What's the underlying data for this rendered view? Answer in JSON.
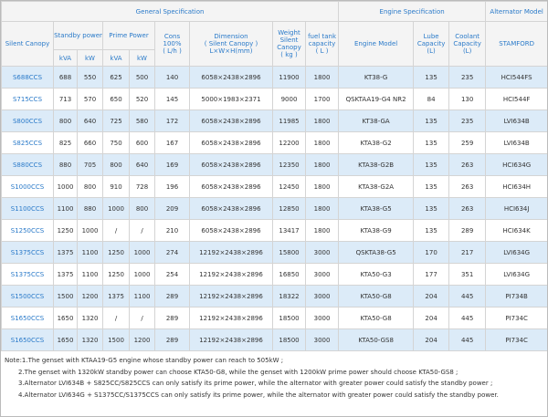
{
  "header": {
    "groups": [
      "General Specification",
      "Engine Specification",
      "Alternator Model"
    ],
    "columns": [
      [
        "Silent Canopy"
      ],
      [
        "Standby power"
      ],
      [
        "Prime Power"
      ],
      [
        "Cons",
        "100%",
        "( L/h )"
      ],
      [
        "Dimension",
        "( Silent Canopy )",
        "L×W×H(mm)"
      ],
      [
        "Weight",
        "Silent",
        "Canopy",
        "( kg )"
      ],
      [
        "fuel tank",
        "capacity",
        "( L )"
      ],
      [
        "Engine Model"
      ],
      [
        "Lube",
        "Capacity",
        "(L)"
      ],
      [
        "Coolant",
        "Capacity",
        "(L)"
      ],
      [
        "STAMFORD"
      ]
    ],
    "units": [
      "kVA",
      "kW",
      "kVA",
      "kW"
    ]
  },
  "rows": [
    [
      "S688CCS",
      "688",
      "550",
      "625",
      "500",
      "140",
      "6058×2438×2896",
      "11900",
      "1800",
      "KT38-G",
      "135",
      "235",
      "HCI544FS"
    ],
    [
      "S715CCS",
      "713",
      "570",
      "650",
      "520",
      "145",
      "5000×1983×2371",
      "9000",
      "1700",
      "QSKTAA19-G4 NR2",
      "84",
      "130",
      "HCI544F"
    ],
    [
      "S800CCS",
      "800",
      "640",
      "725",
      "580",
      "172",
      "6058×2438×2896",
      "11985",
      "1800",
      "KT38-GA",
      "135",
      "235",
      "LVI634B"
    ],
    [
      "S825CCS",
      "825",
      "660",
      "750",
      "600",
      "167",
      "6058×2438×2896",
      "12200",
      "1800",
      "KTA38-G2",
      "135",
      "259",
      "LVI634B"
    ],
    [
      "S880CCS",
      "880",
      "705",
      "800",
      "640",
      "169",
      "6058×2438×2896",
      "12350",
      "1800",
      "KTA38-G2B",
      "135",
      "263",
      "HCI634G"
    ],
    [
      "S1000CCS",
      "1000",
      "800",
      "910",
      "728",
      "196",
      "6058×2438×2896",
      "12450",
      "1800",
      "KTA38-G2A",
      "135",
      "263",
      "HCI634H"
    ],
    [
      "S1100CCS",
      "1100",
      "880",
      "1000",
      "800",
      "209",
      "6058×2438×2896",
      "12850",
      "1800",
      "KTA38-G5",
      "135",
      "263",
      "HCI634J"
    ],
    [
      "S1250CCS",
      "1250",
      "1000",
      "/",
      "/",
      "210",
      "6058×2438×2896",
      "13417",
      "1800",
      "KTA38-G9",
      "135",
      "289",
      "HCI634K"
    ],
    [
      "S1375CCS",
      "1375",
      "1100",
      "1250",
      "1000",
      "274",
      "12192×2438×2896",
      "15800",
      "3000",
      "QSKTA38-G5",
      "170",
      "217",
      "LVI634G"
    ],
    [
      "S1375CCS",
      "1375",
      "1100",
      "1250",
      "1000",
      "254",
      "12192×2438×2896",
      "16850",
      "3000",
      "KTA50-G3",
      "177",
      "351",
      "LVI634G"
    ],
    [
      "S1500CCS",
      "1500",
      "1200",
      "1375",
      "1100",
      "289",
      "12192×2438×2896",
      "18322",
      "3000",
      "KTA50-G8",
      "204",
      "445",
      "PI734B"
    ],
    [
      "S1650CCS",
      "1650",
      "1320",
      "/",
      "/",
      "289",
      "12192×2438×2896",
      "18500",
      "3000",
      "KTA50-G8",
      "204",
      "445",
      "PI734C"
    ],
    [
      "S1650CCS",
      "1650",
      "1320",
      "1500",
      "1200",
      "289",
      "12192×2438×2896",
      "18500",
      "3000",
      "KTA50-GS8",
      "204",
      "445",
      "PI734C"
    ]
  ],
  "notes": [
    "Note:1.The genset with KTAA19-G5 engine whose standby power can reach to 505kW ;",
    "2.The genset with 1320kW standby power can choose KTA50-G8, while the genset with 1200kW prime power should choose KTA50-GS8 ;",
    "3.Alternator LVI634B + S825CC/S825CCS can only satisfy its prime power, while the alternator with greater power could satisfy the standby power ;",
    "4.Alternator LVI634G + S1375CC/S1375CCS can only satisfy its prime power, while the alternator with greater power could satisfy the standby power."
  ]
}
